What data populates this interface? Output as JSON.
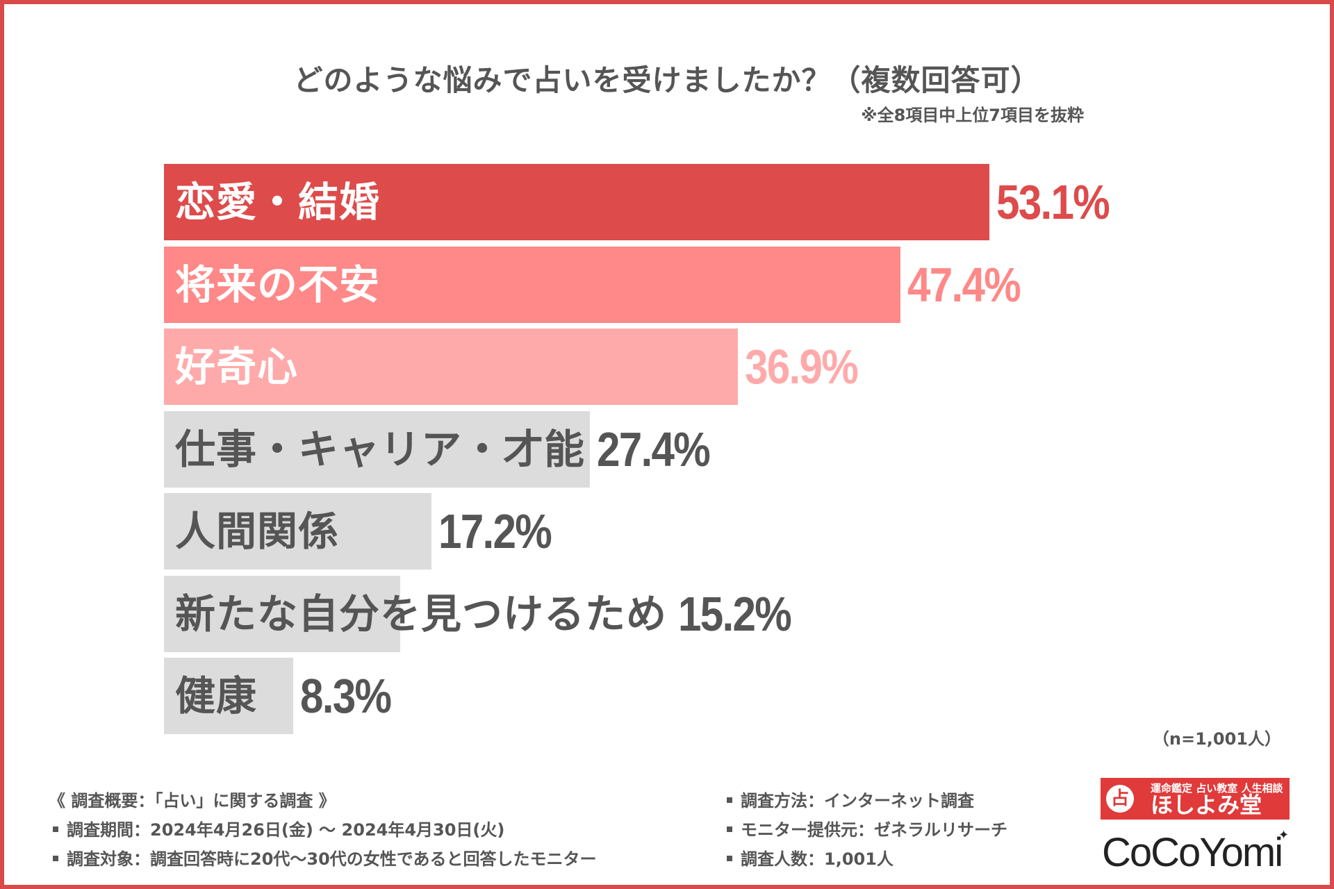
{
  "chart_data": {
    "type": "bar",
    "orientation": "horizontal",
    "title": "どのような悩みで占いを受けましたか？（複数回答可）",
    "subtitle": "※全8項目中上位7項目を抜粋",
    "categories": [
      "恋愛・結婚",
      "将来の不安",
      "好奇心",
      "仕事・キャリア・才能",
      "人間関係",
      "新たな自分を見つけるため",
      "健康"
    ],
    "values": [
      53.1,
      47.4,
      36.9,
      27.4,
      17.2,
      15.2,
      8.3
    ],
    "value_labels": [
      "53.1%",
      "47.4%",
      "36.9%",
      "27.4%",
      "17.2%",
      "15.2%",
      "8.3%"
    ],
    "xlim": [
      0,
      53.1
    ],
    "grid": false,
    "colors": {
      "bars": [
        "#dd4b4b",
        "#ff8888",
        "#ffaaaa",
        "#dcdcdc",
        "#dcdcdc",
        "#dcdcdc",
        "#dcdcdc"
      ],
      "labels": [
        "#ffffff",
        "#ffffff",
        "#ffffff",
        "#555555",
        "#555555",
        "#555555",
        "#555555"
      ],
      "values": [
        "#dd4b4b",
        "#ff8888",
        "#ffaaaa",
        "#555555",
        "#555555",
        "#555555",
        "#555555"
      ]
    }
  },
  "sample_size": "（n=1,001人）",
  "survey": {
    "overview": "《 調査概要：「占い」に関する調査 》",
    "left_items": [
      "調査期間：2024年4月26日(金) ～ 2024年4月30日(火)",
      "調査対象：調査回答時に20代～30代の女性であると回答したモニター"
    ],
    "right_items": [
      "調査方法：インターネット調査",
      "モニター提供元：ゼネラルリサーチ",
      "調査人数：1,001人"
    ]
  },
  "logos": {
    "hoshiyomido_mark": "占",
    "hoshiyomido_tagline": "運命鑑定 占い教室 人生相談",
    "hoshiyomido_name": "ほしよみ堂",
    "cocoyomi_name": "CoCoYomi",
    "hoshiyomido_color": "#e03a3a"
  }
}
